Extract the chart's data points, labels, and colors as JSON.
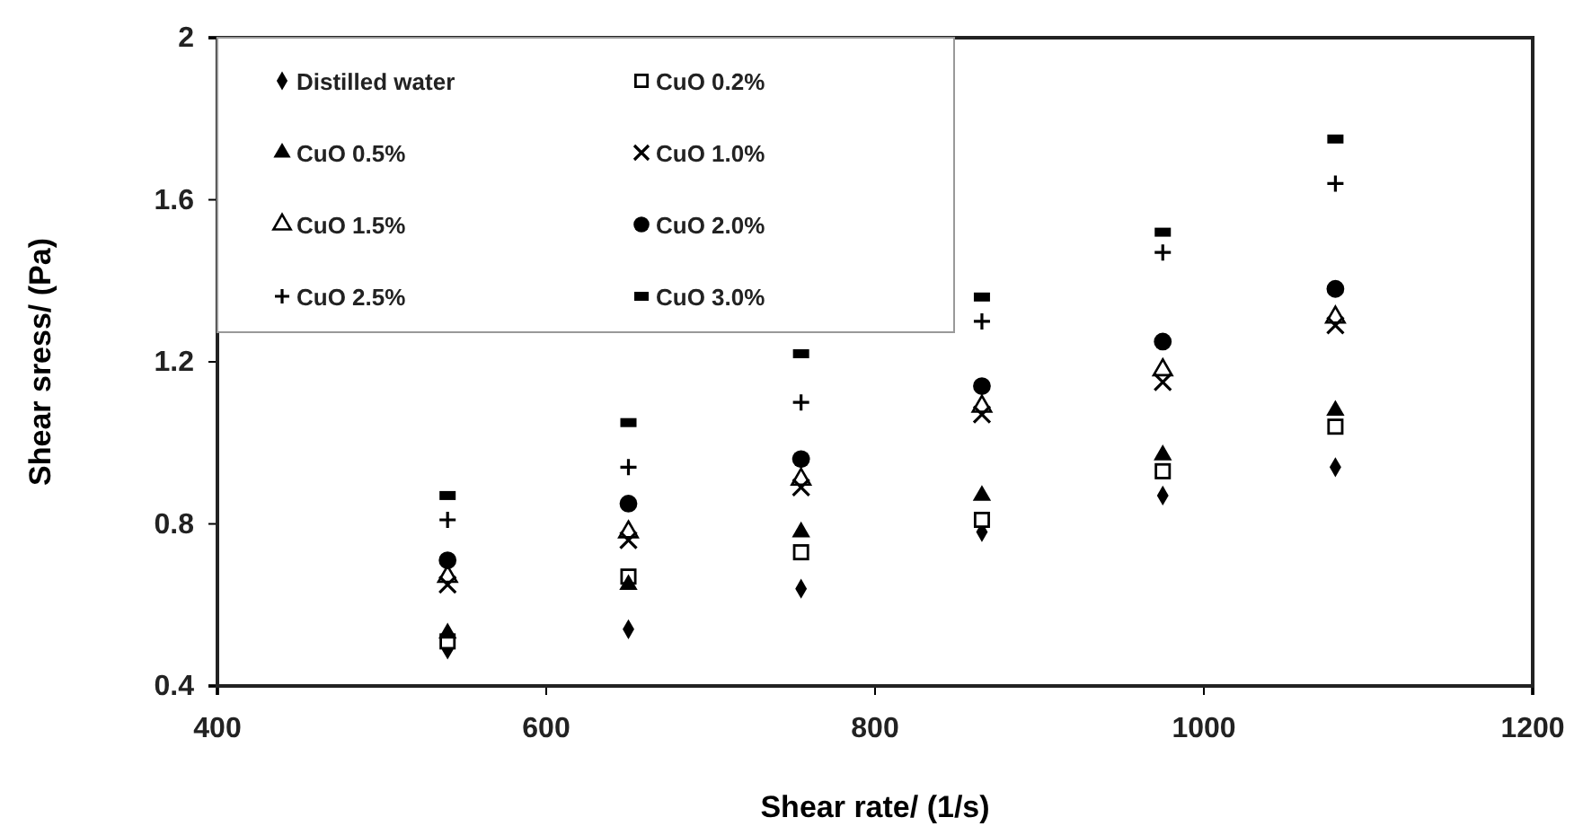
{
  "chart_data": {
    "type": "scatter",
    "xlabel": "Shear rate/ (1/s)",
    "ylabel": "Shear sress/ (Pa)",
    "xlim": [
      400,
      1200
    ],
    "xticks": [
      400,
      600,
      800,
      1000,
      1200
    ],
    "ylim": [
      0.4,
      2
    ],
    "yticks": [
      0.4,
      0.8,
      1.2,
      1.6,
      2
    ],
    "legend": "top left",
    "grid": false,
    "x": [
      540,
      650,
      755,
      865,
      975,
      1080
    ],
    "series": [
      {
        "name": "Distilled water",
        "color": "#000000",
        "marker": "diamond",
        "values": [
          0.49,
          0.54,
          0.64,
          0.78,
          0.87,
          0.94
        ]
      },
      {
        "name": "CuO 0.2%",
        "color": "#000000",
        "marker": "square-open",
        "values": [
          0.51,
          0.67,
          0.73,
          0.81,
          0.93,
          1.04
        ]
      },
      {
        "name": "CuO 0.5%",
        "color": "#000000",
        "marker": "triangle",
        "values": [
          0.53,
          0.65,
          0.78,
          0.87,
          0.97,
          1.08
        ]
      },
      {
        "name": "CuO 1.0%",
        "color": "#000000",
        "marker": "x",
        "values": [
          0.65,
          0.76,
          0.89,
          1.07,
          1.15,
          1.29
        ]
      },
      {
        "name": "CuO 1.5%",
        "color": "#000000",
        "marker": "triangle-open",
        "values": [
          0.67,
          0.78,
          0.91,
          1.09,
          1.18,
          1.31
        ]
      },
      {
        "name": "CuO 2.0%",
        "color": "#000000",
        "marker": "circle",
        "values": [
          0.71,
          0.85,
          0.96,
          1.14,
          1.25,
          1.38
        ]
      },
      {
        "name": "CuO 2.5%",
        "color": "#000000",
        "marker": "plus",
        "values": [
          0.81,
          0.94,
          1.1,
          1.3,
          1.47,
          1.64
        ]
      },
      {
        "name": "CuO 3.0%",
        "color": "#000000",
        "values": [
          0.87,
          1.05,
          1.22,
          1.36,
          1.52,
          1.75
        ]
      }
    ]
  }
}
